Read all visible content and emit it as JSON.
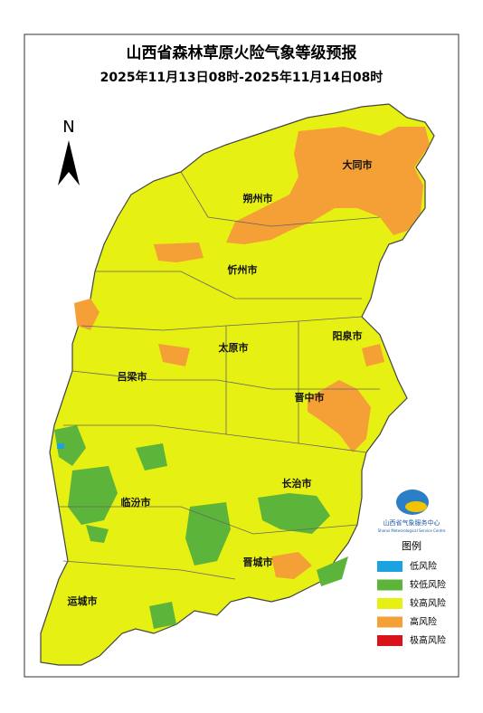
{
  "header": {
    "title": "山西省森林草原火险气象等级预报",
    "subtitle": "2025年11月13日08时-2025年11月14日08时"
  },
  "north": "N",
  "cities": [
    "大同市",
    "朔州市",
    "忻州市",
    "阳泉市",
    "太原市",
    "吕梁市",
    "晋中市",
    "长治市",
    "临汾市",
    "晋城市",
    "运城市"
  ],
  "logo": {
    "name": "山西省气象服务中心",
    "english": "Shanxi Meteorological Service Centre"
  },
  "legend": {
    "title": "图例",
    "items": [
      {
        "name": "低风险",
        "color": "#1ba2e0"
      },
      {
        "name": "较低风险",
        "color": "#5cb43a"
      },
      {
        "name": "较高风险",
        "color": "#e6f012"
      },
      {
        "name": "高风险",
        "color": "#f5a036"
      },
      {
        "name": "极高风险",
        "color": "#d9121c"
      }
    ]
  }
}
